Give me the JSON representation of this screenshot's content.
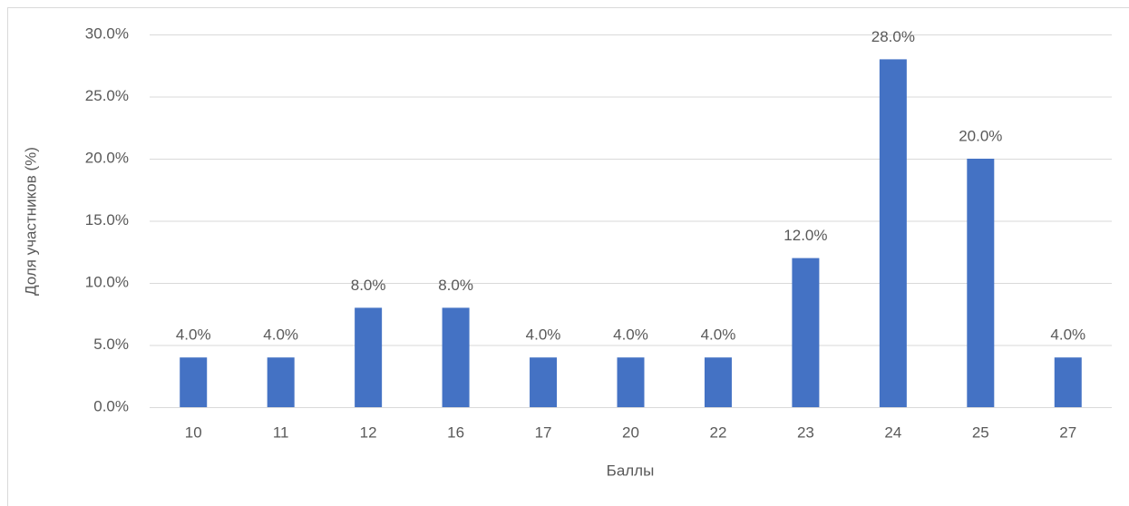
{
  "chart_data": {
    "type": "bar",
    "x_label": "Баллы",
    "y_label": "Доля участников (%)",
    "categories": [
      "10",
      "11",
      "12",
      "16",
      "17",
      "20",
      "22",
      "23",
      "24",
      "25",
      "27"
    ],
    "values": [
      4,
      4,
      8,
      8,
      4,
      4,
      4,
      12,
      28,
      20,
      4
    ],
    "value_labels": [
      "4.0%",
      "4.0%",
      "8.0%",
      "8.0%",
      "4.0%",
      "4.0%",
      "4.0%",
      "12.0%",
      "28.0%",
      "20.0%",
      "4.0%"
    ],
    "color": "#4472c4",
    "ylim": [
      0,
      30
    ],
    "yticks": [
      {
        "value": 0,
        "label": "0.0%"
      },
      {
        "value": 5,
        "label": "5.0%"
      },
      {
        "value": 10,
        "label": "10.0%"
      },
      {
        "value": 15,
        "label": "15.0%"
      },
      {
        "value": 20,
        "label": "20.0%"
      },
      {
        "value": 25,
        "label": "25.0%"
      },
      {
        "value": 30,
        "label": "30.0%"
      }
    ],
    "grid": true
  }
}
